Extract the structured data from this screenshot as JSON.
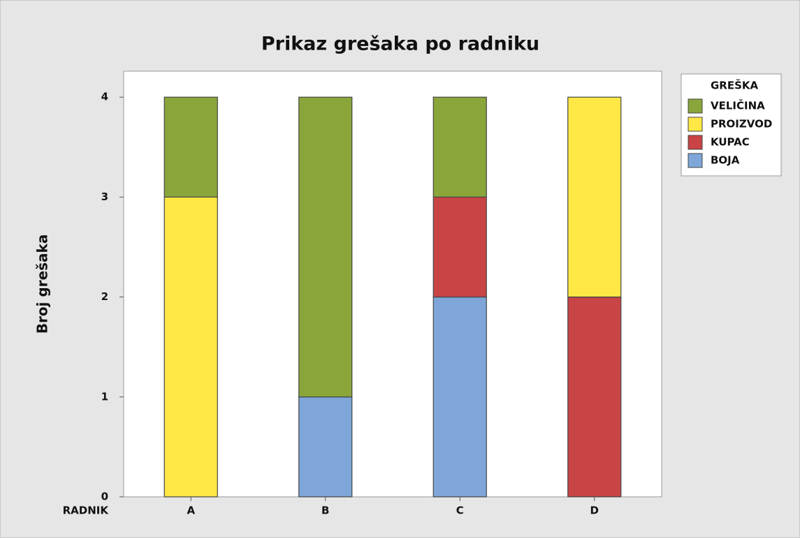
{
  "chart_data": {
    "type": "stacked_bar",
    "title": "Prikaz grešaka po radniku",
    "y_label": "Broj grešaka",
    "x_label": "RADNIK",
    "legend_title": "GREŠKA",
    "legend_position": "right",
    "categories": [
      "A",
      "B",
      "C",
      "D"
    ],
    "series": [
      {
        "name": "BOJA",
        "color": "#7ea6d9",
        "values": [
          0,
          1,
          2,
          0
        ]
      },
      {
        "name": "KUPAC",
        "color": "#c84445",
        "values": [
          0,
          0,
          1,
          2
        ]
      },
      {
        "name": "PROIZVOD",
        "color": "#ffe845",
        "values": [
          3,
          0,
          0,
          2
        ]
      },
      {
        "name": "VELIČINA",
        "color": "#8aa63a",
        "values": [
          1,
          3,
          1,
          0
        ]
      }
    ],
    "ylim": [
      0,
      4.26
    ],
    "yticks": [
      0,
      1,
      2,
      3,
      4
    ]
  }
}
